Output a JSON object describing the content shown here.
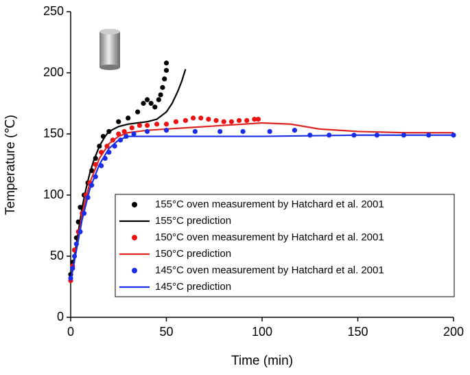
{
  "chart_data": {
    "type": "line",
    "xlabel": "Time (min)",
    "ylabel": "Temperature (℃)",
    "xlim": [
      0,
      200
    ],
    "ylim": [
      0,
      250
    ],
    "xticks": [
      0,
      50,
      100,
      150,
      200
    ],
    "yticks": [
      0,
      50,
      100,
      150,
      200,
      250
    ],
    "series": [
      {
        "name": "155°C oven measurement by Hatchard et al. 2001",
        "type": "scatter",
        "color": "#000000",
        "x": [
          0,
          1,
          2,
          3,
          4,
          5,
          7,
          9,
          11,
          13,
          15,
          17,
          20,
          25,
          30,
          35,
          38,
          40,
          42,
          44,
          46,
          47,
          48,
          49,
          50,
          50
        ],
        "values": [
          35,
          45,
          55,
          65,
          78,
          90,
          100,
          110,
          120,
          130,
          140,
          148,
          152,
          160,
          163,
          168,
          175,
          178,
          175,
          172,
          178,
          182,
          188,
          195,
          202,
          208
        ]
      },
      {
        "name": "155°C prediction",
        "type": "line",
        "color": "#000000",
        "x": [
          0,
          2,
          4,
          6,
          8,
          10,
          12,
          15,
          18,
          20,
          25,
          30,
          40,
          45,
          50,
          53,
          56,
          58,
          60
        ],
        "values": [
          30,
          50,
          70,
          90,
          105,
          118,
          128,
          140,
          148,
          152,
          156,
          158,
          160,
          162,
          168,
          175,
          185,
          193,
          203
        ]
      },
      {
        "name": "150°C oven measurement by Hatchard et al. 2001",
        "type": "scatter",
        "color": "#ee1111",
        "x": [
          0,
          1,
          2,
          4,
          6,
          8,
          10,
          13,
          16,
          19,
          22,
          25,
          28,
          32,
          36,
          40,
          45,
          50,
          55,
          60,
          64,
          68,
          72,
          76,
          80,
          84,
          88,
          92,
          96,
          98
        ],
        "values": [
          30,
          42,
          55,
          70,
          85,
          100,
          110,
          125,
          135,
          140,
          145,
          150,
          152,
          155,
          157,
          157,
          158,
          158,
          160,
          161,
          163,
          163,
          162,
          161,
          160,
          160,
          161,
          161,
          162,
          162
        ]
      },
      {
        "name": "150°C prediction",
        "type": "line",
        "color": "#dd2222",
        "x": [
          0,
          3,
          6,
          10,
          15,
          20,
          25,
          30,
          40,
          60,
          80,
          100,
          115,
          130,
          150,
          175,
          200
        ],
        "values": [
          30,
          55,
          85,
          110,
          130,
          142,
          148,
          151,
          153,
          155,
          157,
          159,
          158,
          154,
          152,
          151,
          151
        ]
      },
      {
        "name": "145°C oven measurement by Hatchard et al. 2001",
        "type": "scatter",
        "color": "#1a2ee8",
        "x": [
          0,
          1,
          2,
          3,
          5,
          7,
          9,
          11,
          13,
          16,
          18,
          20,
          23,
          26,
          29,
          33,
          40,
          50,
          65,
          78,
          90,
          104,
          117,
          125,
          135,
          148,
          160,
          174,
          187,
          200
        ],
        "values": [
          32,
          40,
          50,
          60,
          70,
          85,
          98,
          108,
          115,
          124,
          130,
          135,
          140,
          145,
          148,
          150,
          152,
          153,
          152,
          152,
          152,
          152,
          153,
          149,
          149,
          149,
          149,
          149,
          149,
          149
        ]
      },
      {
        "name": "145°C prediction",
        "type": "line",
        "color": "#1a2ee8",
        "x": [
          0,
          3,
          6,
          10,
          15,
          20,
          25,
          30,
          40,
          100,
          150,
          200
        ],
        "values": [
          30,
          55,
          80,
          105,
          125,
          138,
          145,
          148,
          148,
          148,
          149,
          149
        ]
      }
    ]
  }
}
